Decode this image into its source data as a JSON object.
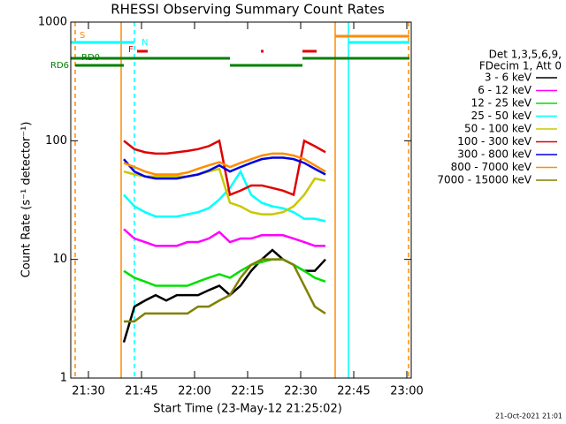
{
  "chart_data": {
    "type": "line",
    "title": "RHESSI Observing Summary Count Rates",
    "x_label": "Start Time (23-May-12 21:25:02)",
    "y_label": "Count Rate (s⁻¹ detector⁻¹)",
    "legend_header": [
      "Det 1,3,5,6,9,",
      "FDecim 1, Att 0"
    ],
    "footer": "21-Oct-2021 21:01",
    "log_y": true,
    "legend": "right",
    "xlim": [
      1285,
      1381.25
    ],
    "xticks": [
      {
        "value": 1290,
        "label": "21:30"
      },
      {
        "value": 1305,
        "label": "21:45"
      },
      {
        "value": 1320,
        "label": "22:00"
      },
      {
        "value": 1335,
        "label": "22:15"
      },
      {
        "value": 1350,
        "label": "22:30"
      },
      {
        "value": 1365,
        "label": "22:45"
      },
      {
        "value": 1380,
        "label": "23:00"
      }
    ],
    "ylim": [
      1,
      1000
    ],
    "yticks": [
      1,
      10,
      100,
      1000
    ],
    "x": [
      1300,
      1303,
      1306,
      1309,
      1312,
      1315,
      1318,
      1321,
      1324,
      1327,
      1330,
      1333,
      1336,
      1339,
      1342,
      1345,
      1348,
      1351,
      1354,
      1357
    ],
    "series": [
      {
        "name": "3 - 6 keV",
        "color": "#000000",
        "values": [
          2,
          4,
          4.5,
          5,
          4.5,
          5,
          5,
          5,
          5.5,
          6,
          5,
          6,
          8,
          10,
          12,
          10,
          9,
          8,
          8,
          10
        ]
      },
      {
        "name": "6 - 12 keV",
        "color": "#ff00ff",
        "values": [
          18,
          15,
          14,
          13,
          13,
          13,
          14,
          14,
          15,
          17,
          14,
          15,
          15,
          16,
          16,
          16,
          15,
          14,
          13,
          13
        ]
      },
      {
        "name": "12 - 25 keV",
        "color": "#00e000",
        "values": [
          8,
          7,
          6.5,
          6,
          6,
          6,
          6,
          6.5,
          7,
          7.5,
          7,
          8,
          9,
          9.5,
          10,
          10,
          9,
          8,
          7,
          6.5
        ]
      },
      {
        "name": "25 - 50 keV",
        "color": "#00ffff",
        "values": [
          35,
          28,
          25,
          23,
          23,
          23,
          24,
          25,
          27,
          32,
          40,
          55,
          35,
          30,
          28,
          27,
          25,
          22,
          22,
          21
        ]
      },
      {
        "name": "50 - 100 keV",
        "color": "#c8c800",
        "values": [
          55,
          52,
          50,
          50,
          50,
          50,
          50,
          52,
          55,
          58,
          30,
          28,
          25,
          24,
          24,
          25,
          28,
          35,
          48,
          46
        ]
      },
      {
        "name": "100 - 300 keV",
        "color": "#e00000",
        "values": [
          100,
          85,
          80,
          78,
          78,
          80,
          82,
          85,
          90,
          100,
          35,
          38,
          42,
          42,
          40,
          38,
          35,
          100,
          90,
          80
        ]
      },
      {
        "name": "300 - 800 keV",
        "color": "#0000e0",
        "values": [
          70,
          55,
          50,
          48,
          48,
          48,
          50,
          52,
          56,
          62,
          55,
          60,
          65,
          70,
          72,
          72,
          70,
          65,
          58,
          52
        ]
      },
      {
        "name": "800 - 7000 keV",
        "color": "#ff8c00",
        "values": [
          65,
          60,
          55,
          52,
          52,
          52,
          54,
          58,
          62,
          66,
          60,
          65,
          70,
          75,
          78,
          78,
          75,
          70,
          62,
          55
        ]
      },
      {
        "name": "7000 - 15000 keV",
        "color": "#808000",
        "values": [
          3,
          3,
          3.5,
          3.5,
          3.5,
          3.5,
          3.5,
          4,
          4,
          4.5,
          5,
          7,
          9,
          10,
          10,
          10,
          9,
          6,
          4,
          3.5
        ]
      }
    ],
    "vlines": [
      {
        "x": 1286.25,
        "color": "#ff8c00",
        "dashed": true
      },
      {
        "x": 1299.25,
        "color": "#ff8c00",
        "dashed": false
      },
      {
        "x": 1303,
        "color": "#00ffff",
        "dashed": true
      },
      {
        "x": 1359.75,
        "color": "#ff8c00",
        "dashed": false
      },
      {
        "x": 1363.5,
        "color": "#00ffff",
        "dashed": false
      },
      {
        "x": 1380.5,
        "color": "#ff8c00",
        "dashed": true
      }
    ],
    "flags": [
      {
        "label": "S",
        "color": "#ff8c00",
        "segments": [
          [
            1359.75,
            1380.75
          ]
        ]
      },
      {
        "label": "N",
        "color": "#00ffff",
        "segments": [
          [
            1285,
            1303
          ],
          [
            1363.5,
            1380.75
          ]
        ]
      },
      {
        "label": "F",
        "color": "#e00000",
        "segments": [
          [
            1303.75,
            1306.75
          ],
          [
            1338.75,
            1339.5
          ],
          [
            1350.5,
            1354.5
          ]
        ]
      },
      {
        "label": "RD0",
        "color": "#008000",
        "segments": [
          [
            1285,
            1330
          ],
          [
            1350.5,
            1380.75
          ]
        ]
      },
      {
        "label": "RD6",
        "color": "#008000",
        "segments": [
          [
            1286.25,
            1300
          ],
          [
            1330,
            1350.5
          ]
        ]
      }
    ]
  }
}
